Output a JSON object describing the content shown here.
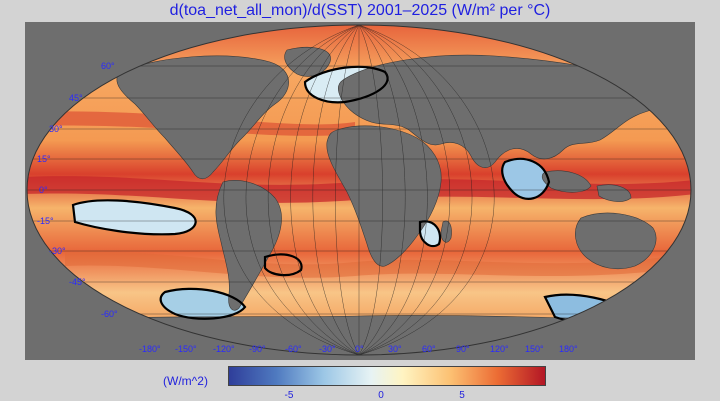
{
  "title": "d(toa_net_all_mon)/d(SST) 2001–2025 (W/m² per °C)",
  "legend": {
    "units": "(W/m^2)",
    "ticks": [
      "-5",
      "0",
      "5"
    ],
    "colors": [
      "#2f3e9a",
      "#4f7ac0",
      "#9cc7e6",
      "#e7f3f4",
      "#fff4c2",
      "#fcc173",
      "#ec6c34",
      "#b31625"
    ]
  },
  "map": {
    "projection": "Robinson",
    "lat_labels": [
      "60°",
      "45°",
      "30°",
      "15°",
      "0°",
      "-15°",
      "-30°",
      "-45°",
      "-60°"
    ],
    "lon_labels": [
      "-180°",
      "-150°",
      "-120°",
      "-90°",
      "-60°",
      "-30°",
      "0°",
      "30°",
      "60°",
      "90°",
      "120°",
      "150°",
      "180°"
    ],
    "land_color": "#6e6e6e",
    "contour_color": "#000000"
  }
}
